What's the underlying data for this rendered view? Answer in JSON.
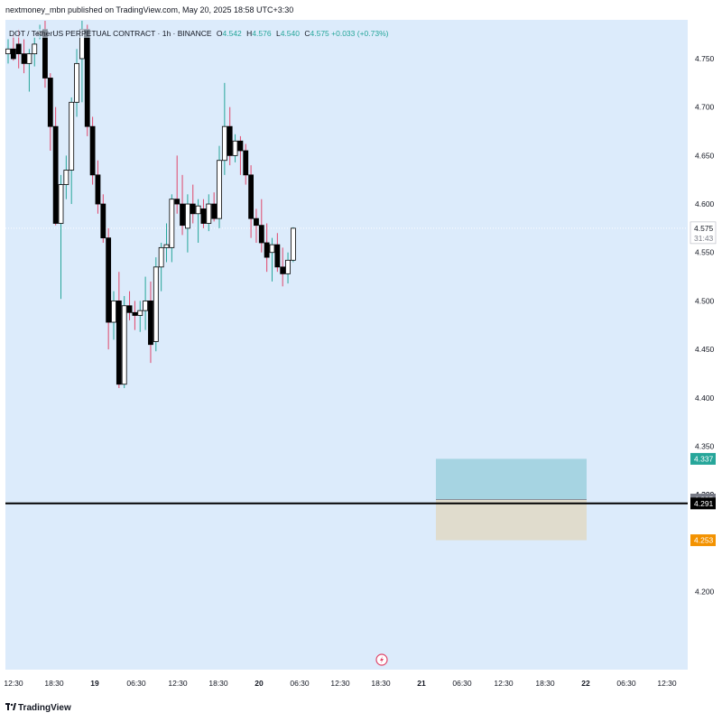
{
  "header": {
    "publisher": "nextmoney_mbn published on TradingView.com, May 20, 2025 18:58 UTC+3:30",
    "symbol": "DOT / TetherUS PERPETUAL CONTRACT · 1h · BINANCE",
    "ohlc": {
      "o_label": "O",
      "o": "4.542",
      "h_label": "H",
      "h": "4.576",
      "l_label": "L",
      "l": "4.540",
      "c_label": "C",
      "c": "4.575",
      "change": "+0.033 (+0.73%)"
    }
  },
  "footer": {
    "brand": "TradingView",
    "logo": "tradingview-logo-icon"
  },
  "colors": {
    "background": "#dcebfb",
    "up_body": "#ffffff",
    "down_body": "#000000",
    "up_wick": "#26a69a",
    "down_wick": "#e0466a",
    "target_zone": "#a6d4e2",
    "stop_zone": "#e0dccd",
    "target_tag": "#26a69a",
    "stop_tag": "#f39200",
    "entry_line": "#000000"
  },
  "chart_data": {
    "type": "candlestick",
    "ylim": [
      4.18,
      4.78
    ],
    "y_ticks": [
      "4.750",
      "4.700",
      "4.650",
      "4.600",
      "4.550",
      "4.500",
      "4.450",
      "4.400",
      "4.350",
      "4.300",
      "4.200"
    ],
    "x_ticks": [
      "12:30",
      "18:30",
      "19",
      "06:30",
      "12:30",
      "18:30",
      "20",
      "06:30",
      "12:30",
      "18:30",
      "21",
      "06:30",
      "12:30",
      "18:30",
      "22",
      "06:30",
      "12:30"
    ],
    "candles": [
      {
        "o": 4.755,
        "h": 4.77,
        "l": 4.745,
        "c": 4.76
      },
      {
        "o": 4.76,
        "h": 4.775,
        "l": 4.748,
        "c": 4.75
      },
      {
        "o": 4.765,
        "h": 4.78,
        "l": 4.74,
        "c": 4.755
      },
      {
        "o": 4.755,
        "h": 4.77,
        "l": 4.735,
        "c": 4.745
      },
      {
        "o": 4.745,
        "h": 4.76,
        "l": 4.716,
        "c": 4.755
      },
      {
        "o": 4.755,
        "h": 4.772,
        "l": 4.742,
        "c": 4.765
      },
      {
        "o": 4.775,
        "h": 4.785,
        "l": 4.77,
        "c": 4.778
      },
      {
        "o": 4.78,
        "h": 4.79,
        "l": 4.72,
        "c": 4.73
      },
      {
        "o": 4.73,
        "h": 4.735,
        "l": 4.655,
        "c": 4.68
      },
      {
        "o": 4.68,
        "h": 4.7,
        "l": 4.578,
        "c": 4.58
      },
      {
        "o": 4.58,
        "h": 4.63,
        "l": 4.502,
        "c": 4.62
      },
      {
        "o": 4.62,
        "h": 4.65,
        "l": 4.605,
        "c": 4.635
      },
      {
        "o": 4.635,
        "h": 4.71,
        "l": 4.6,
        "c": 4.705
      },
      {
        "o": 4.705,
        "h": 4.76,
        "l": 4.69,
        "c": 4.745
      },
      {
        "o": 4.75,
        "h": 4.79,
        "l": 4.705,
        "c": 4.78
      },
      {
        "o": 4.78,
        "h": 4.785,
        "l": 4.67,
        "c": 4.68
      },
      {
        "o": 4.68,
        "h": 4.69,
        "l": 4.62,
        "c": 4.63
      },
      {
        "o": 4.63,
        "h": 4.645,
        "l": 4.59,
        "c": 4.6
      },
      {
        "o": 4.6,
        "h": 4.61,
        "l": 4.56,
        "c": 4.565
      },
      {
        "o": 4.565,
        "h": 4.575,
        "l": 4.45,
        "c": 4.478
      },
      {
        "o": 4.478,
        "h": 4.51,
        "l": 4.46,
        "c": 4.5
      },
      {
        "o": 4.5,
        "h": 4.53,
        "l": 4.41,
        "c": 4.414
      },
      {
        "o": 4.414,
        "h": 4.505,
        "l": 4.41,
        "c": 4.495
      },
      {
        "o": 4.495,
        "h": 4.51,
        "l": 4.48,
        "c": 4.488
      },
      {
        "o": 4.488,
        "h": 4.5,
        "l": 4.47,
        "c": 4.485
      },
      {
        "o": 4.485,
        "h": 4.5,
        "l": 4.468,
        "c": 4.49
      },
      {
        "o": 4.49,
        "h": 4.525,
        "l": 4.47,
        "c": 4.5
      },
      {
        "o": 4.5,
        "h": 4.52,
        "l": 4.436,
        "c": 4.455
      },
      {
        "o": 4.458,
        "h": 4.545,
        "l": 4.448,
        "c": 4.535
      },
      {
        "o": 4.535,
        "h": 4.56,
        "l": 4.51,
        "c": 4.555
      },
      {
        "o": 4.555,
        "h": 4.58,
        "l": 4.54,
        "c": 4.558
      },
      {
        "o": 4.555,
        "h": 4.61,
        "l": 4.54,
        "c": 4.605
      },
      {
        "o": 4.605,
        "h": 4.65,
        "l": 4.59,
        "c": 4.6
      },
      {
        "o": 4.6,
        "h": 4.63,
        "l": 4.568,
        "c": 4.578
      },
      {
        "o": 4.575,
        "h": 4.61,
        "l": 4.55,
        "c": 4.6
      },
      {
        "o": 4.6,
        "h": 4.62,
        "l": 4.58,
        "c": 4.59
      },
      {
        "o": 4.59,
        "h": 4.605,
        "l": 4.56,
        "c": 4.598
      },
      {
        "o": 4.595,
        "h": 4.605,
        "l": 4.575,
        "c": 4.58
      },
      {
        "o": 4.58,
        "h": 4.61,
        "l": 4.572,
        "c": 4.6
      },
      {
        "o": 4.6,
        "h": 4.612,
        "l": 4.582,
        "c": 4.585
      },
      {
        "o": 4.585,
        "h": 4.66,
        "l": 4.575,
        "c": 4.645
      },
      {
        "o": 4.645,
        "h": 4.725,
        "l": 4.63,
        "c": 4.68
      },
      {
        "o": 4.68,
        "h": 4.7,
        "l": 4.64,
        "c": 4.65
      },
      {
        "o": 4.65,
        "h": 4.672,
        "l": 4.643,
        "c": 4.665
      },
      {
        "o": 4.665,
        "h": 4.67,
        "l": 4.63,
        "c": 4.655
      },
      {
        "o": 4.655,
        "h": 4.662,
        "l": 4.62,
        "c": 4.63
      },
      {
        "o": 4.63,
        "h": 4.64,
        "l": 4.565,
        "c": 4.585
      },
      {
        "o": 4.585,
        "h": 4.595,
        "l": 4.56,
        "c": 4.578
      },
      {
        "o": 4.578,
        "h": 4.605,
        "l": 4.55,
        "c": 4.56
      },
      {
        "o": 4.56,
        "h": 4.58,
        "l": 4.53,
        "c": 4.545
      },
      {
        "o": 4.55,
        "h": 4.565,
        "l": 4.52,
        "c": 4.558
      },
      {
        "o": 4.558,
        "h": 4.57,
        "l": 4.53,
        "c": 4.535
      },
      {
        "o": 4.535,
        "h": 4.555,
        "l": 4.515,
        "c": 4.528
      },
      {
        "o": 4.528,
        "h": 4.55,
        "l": 4.518,
        "c": 4.542
      },
      {
        "o": 4.542,
        "h": 4.576,
        "l": 4.54,
        "c": 4.575
      }
    ],
    "current_price": {
      "value": 4.575,
      "label": "4.575",
      "countdown": "31:43"
    },
    "position_tool": {
      "target": {
        "value": 4.337,
        "label": "4.337"
      },
      "entry": {
        "value": 4.295,
        "label": "4.295"
      },
      "stop": {
        "value": 4.253,
        "label": "4.253"
      },
      "hidden_tick_label": "4.300"
    },
    "horizontal_line": {
      "value": 4.291,
      "label": "4.291"
    },
    "event_marker": "lightning-icon"
  }
}
